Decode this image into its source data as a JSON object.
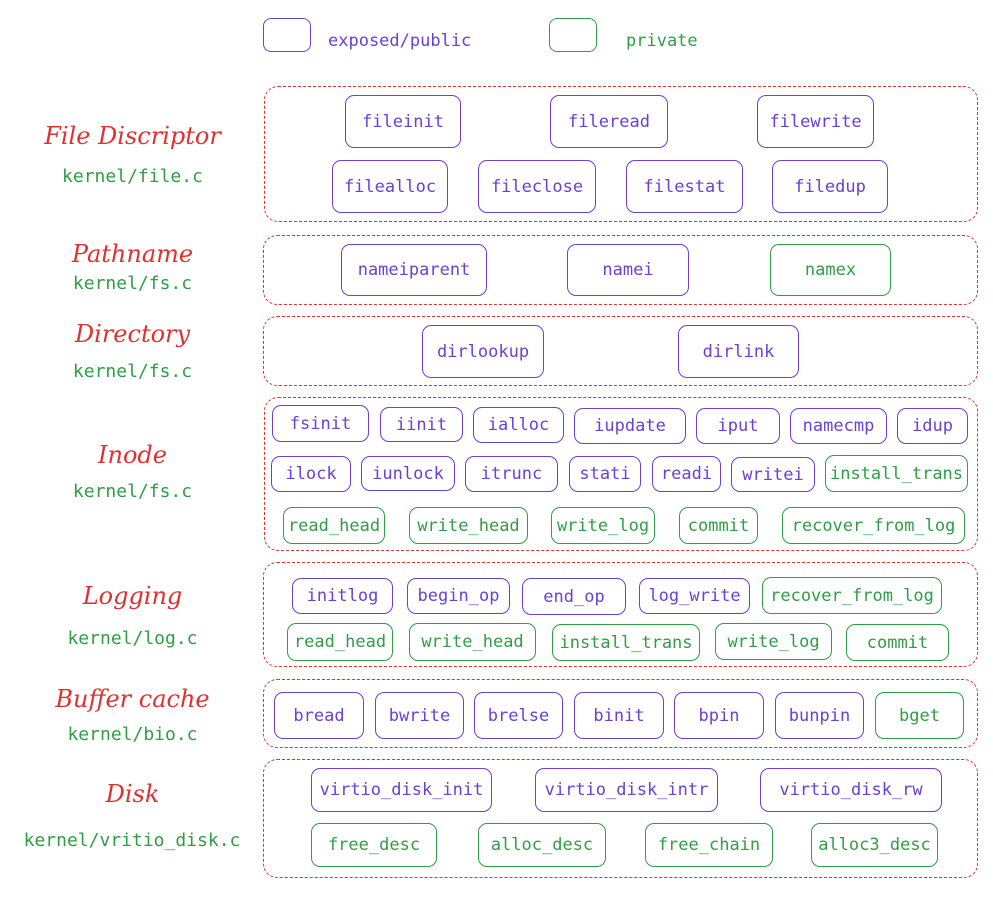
{
  "legend": {
    "public_label": "exposed/public",
    "private_label": "private",
    "public_color": "#6741d9",
    "private_color": "#2f9e44"
  },
  "layers": [
    {
      "title": "File Discriptor",
      "file": "kernel/file.c",
      "functions": [
        {
          "name": "fileinit",
          "kind": "public"
        },
        {
          "name": "fileread",
          "kind": "public"
        },
        {
          "name": "filewrite",
          "kind": "public"
        },
        {
          "name": "filealloc",
          "kind": "public"
        },
        {
          "name": "fileclose",
          "kind": "public"
        },
        {
          "name": "filestat",
          "kind": "public"
        },
        {
          "name": "filedup",
          "kind": "public"
        }
      ]
    },
    {
      "title": "Pathname",
      "file": "kernel/fs.c",
      "functions": [
        {
          "name": "nameiparent",
          "kind": "public"
        },
        {
          "name": "namei",
          "kind": "public"
        },
        {
          "name": "namex",
          "kind": "private"
        }
      ]
    },
    {
      "title": "Directory",
      "file": "kernel/fs.c",
      "functions": [
        {
          "name": "dirlookup",
          "kind": "public"
        },
        {
          "name": "dirlink",
          "kind": "public"
        }
      ]
    },
    {
      "title": "Inode",
      "file": "kernel/fs.c",
      "functions": [
        {
          "name": "fsinit",
          "kind": "public"
        },
        {
          "name": "iinit",
          "kind": "public"
        },
        {
          "name": "ialloc",
          "kind": "public"
        },
        {
          "name": "iupdate",
          "kind": "public"
        },
        {
          "name": "iput",
          "kind": "public"
        },
        {
          "name": "namecmp",
          "kind": "public"
        },
        {
          "name": "idup",
          "kind": "public"
        },
        {
          "name": "ilock",
          "kind": "public"
        },
        {
          "name": "iunlock",
          "kind": "public"
        },
        {
          "name": "itrunc",
          "kind": "public"
        },
        {
          "name": "stati",
          "kind": "public"
        },
        {
          "name": "readi",
          "kind": "public"
        },
        {
          "name": "writei",
          "kind": "public"
        },
        {
          "name": "install_trans",
          "kind": "private"
        },
        {
          "name": "read_head",
          "kind": "private"
        },
        {
          "name": "write_head",
          "kind": "private"
        },
        {
          "name": "write_log",
          "kind": "private"
        },
        {
          "name": "commit",
          "kind": "private"
        },
        {
          "name": "recover_from_log",
          "kind": "private"
        }
      ]
    },
    {
      "title": "Logging",
      "file": "kernel/log.c",
      "functions": [
        {
          "name": "initlog",
          "kind": "public"
        },
        {
          "name": "begin_op",
          "kind": "public"
        },
        {
          "name": "end_op",
          "kind": "public"
        },
        {
          "name": "log_write",
          "kind": "public"
        },
        {
          "name": "recover_from_log",
          "kind": "private"
        },
        {
          "name": "read_head",
          "kind": "private"
        },
        {
          "name": "write_head",
          "kind": "private"
        },
        {
          "name": "install_trans",
          "kind": "private"
        },
        {
          "name": "write_log",
          "kind": "private"
        },
        {
          "name": "commit",
          "kind": "private"
        }
      ]
    },
    {
      "title": "Buffer cache",
      "file": "kernel/bio.c",
      "functions": [
        {
          "name": "bread",
          "kind": "public"
        },
        {
          "name": "bwrite",
          "kind": "public"
        },
        {
          "name": "brelse",
          "kind": "public"
        },
        {
          "name": "binit",
          "kind": "public"
        },
        {
          "name": "bpin",
          "kind": "public"
        },
        {
          "name": "bunpin",
          "kind": "public"
        },
        {
          "name": "bget",
          "kind": "private"
        }
      ]
    },
    {
      "title": "Disk",
      "file": "kernel/vritio_disk.c",
      "functions": [
        {
          "name": "virtio_disk_init",
          "kind": "public"
        },
        {
          "name": "virtio_disk_intr",
          "kind": "public"
        },
        {
          "name": "virtio_disk_rw",
          "kind": "public"
        },
        {
          "name": "free_desc",
          "kind": "private"
        },
        {
          "name": "alloc_desc",
          "kind": "private"
        },
        {
          "name": "free_chain",
          "kind": "private"
        },
        {
          "name": "alloc3_desc",
          "kind": "private"
        }
      ]
    }
  ]
}
